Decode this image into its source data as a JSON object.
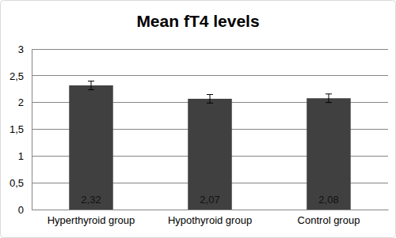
{
  "chart_data": {
    "type": "bar",
    "title": "Mean fT4 levels",
    "categories": [
      "Hyperthyroid group",
      "Hypothyroid group",
      "Control group"
    ],
    "values": [
      2.32,
      2.07,
      2.08
    ],
    "value_labels": [
      "2,32",
      "2,07",
      "2,08"
    ],
    "errors": [
      0.08,
      0.08,
      0.08
    ],
    "color": "#404040",
    "ylim": [
      0,
      3
    ],
    "yticks": [
      0,
      {
        "value": 0.5,
        "label": "0,5"
      },
      1,
      {
        "value": 1.5,
        "label": "1,5"
      },
      2,
      {
        "value": 2.5,
        "label": "2,5"
      },
      3
    ],
    "grid": true,
    "data_labels": true
  }
}
